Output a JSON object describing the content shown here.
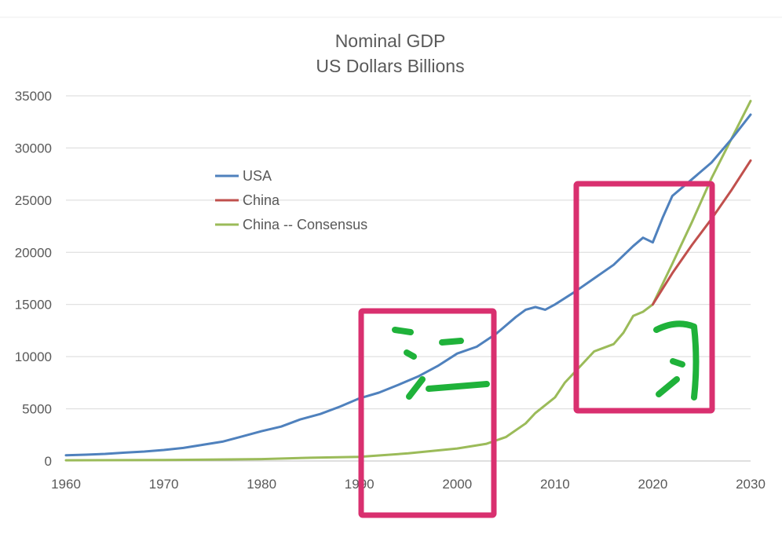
{
  "colors": {
    "usa": "#4f81bd",
    "china": "#c0504d",
    "consensus": "#9bbb59",
    "highlight": "#d9306f",
    "handwriting": "#1fb23a",
    "grid": "#d9d9d9"
  },
  "chart_data": {
    "type": "line",
    "title": "Nominal GDP",
    "subtitle": "US Dollars Billions",
    "xlabel": "",
    "ylabel": "",
    "xlim": [
      1960,
      2030
    ],
    "ylim": [
      0,
      35000
    ],
    "xticks": [
      1960,
      1970,
      1980,
      1990,
      2000,
      2010,
      2020,
      2030
    ],
    "yticks": [
      0,
      5000,
      10000,
      15000,
      20000,
      25000,
      30000,
      35000
    ],
    "grid": true,
    "legend_position": "upper-left",
    "series": [
      {
        "name": "USA",
        "color": "#4f81bd",
        "x": [
          1960,
          1962,
          1964,
          1966,
          1968,
          1970,
          1972,
          1974,
          1976,
          1978,
          1980,
          1982,
          1984,
          1986,
          1988,
          1990,
          1992,
          1994,
          1996,
          1998,
          2000,
          2002,
          2004,
          2006,
          2007,
          2008,
          2009,
          2010,
          2012,
          2014,
          2016,
          2018,
          2019,
          2020,
          2021,
          2022,
          2024,
          2026,
          2028,
          2030
        ],
        "y": [
          550,
          600,
          680,
          800,
          900,
          1050,
          1250,
          1550,
          1850,
          2350,
          2850,
          3300,
          4000,
          4500,
          5200,
          6000,
          6550,
          7300,
          8100,
          9100,
          10300,
          10950,
          12200,
          13800,
          14500,
          14750,
          14500,
          15000,
          16200,
          17500,
          18800,
          20600,
          21400,
          20950,
          23300,
          25400,
          27000,
          28600,
          30800,
          33200
        ]
      },
      {
        "name": "China",
        "color": "#c0504d",
        "x": [
          2020,
          2022,
          2024,
          2026,
          2028,
          2030
        ],
        "y": [
          15000,
          18000,
          20700,
          23200,
          25900,
          28800
        ]
      },
      {
        "name": "China -- Consensus",
        "color": "#9bbb59",
        "x": [
          1960,
          1970,
          1980,
          1985,
          1990,
          1995,
          2000,
          2003,
          2005,
          2007,
          2008,
          2010,
          2011,
          2012,
          2014,
          2016,
          2017,
          2018,
          2019,
          2020,
          2022,
          2024,
          2026,
          2028,
          2030
        ],
        "y": [
          70,
          90,
          180,
          310,
          400,
          730,
          1200,
          1650,
          2300,
          3600,
          4600,
          6100,
          7500,
          8500,
          10500,
          11200,
          12300,
          13900,
          14300,
          15000,
          18900,
          22900,
          27100,
          30800,
          34500
        ]
      }
    ]
  }
}
